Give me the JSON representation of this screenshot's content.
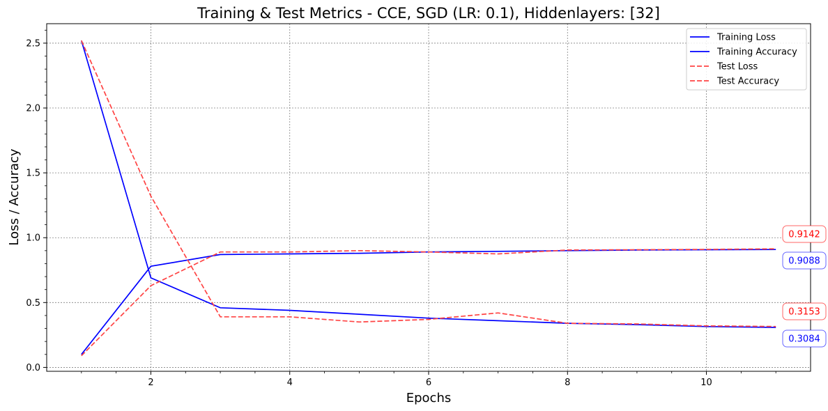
{
  "chart_data": {
    "type": "line",
    "title": "Training & Test Metrics - CCE, SGD (LR: 0.1), Hiddenlayers: [32]",
    "xlabel": "Epochs",
    "ylabel": "Loss / Accuracy",
    "xlim": [
      0.5,
      11.5
    ],
    "ylim": [
      -0.03,
      2.65
    ],
    "xticks": [
      2,
      4,
      6,
      8,
      10
    ],
    "xtick_labels": [
      "2",
      "4",
      "6",
      "8",
      "10"
    ],
    "yticks": [
      0.0,
      0.5,
      1.0,
      1.5,
      2.0,
      2.5
    ],
    "ytick_labels": [
      "0.0",
      "0.5",
      "1.0",
      "1.5",
      "2.0",
      "2.5"
    ],
    "grid": true,
    "legend_position": "top-right",
    "x": [
      1,
      2,
      3,
      4,
      5,
      6,
      7,
      8,
      9,
      10,
      11
    ],
    "series": [
      {
        "name": "Training Loss",
        "color": "#0000ff",
        "dash": "solid",
        "values": [
          2.52,
          0.69,
          0.46,
          0.44,
          0.41,
          0.38,
          0.36,
          0.34,
          0.33,
          0.315,
          0.3084
        ]
      },
      {
        "name": "Training Accuracy",
        "color": "#0000ff",
        "dash": "solid",
        "values": [
          0.1,
          0.78,
          0.87,
          0.875,
          0.88,
          0.89,
          0.895,
          0.9,
          0.905,
          0.907,
          0.9088
        ]
      },
      {
        "name": "Test Loss",
        "color": "#ff4444",
        "dash": "dashed",
        "values": [
          2.52,
          1.32,
          0.39,
          0.39,
          0.35,
          0.37,
          0.42,
          0.34,
          0.335,
          0.32,
          0.3153
        ]
      },
      {
        "name": "Test Accuracy",
        "color": "#ff4444",
        "dash": "dashed",
        "values": [
          0.09,
          0.63,
          0.89,
          0.89,
          0.9,
          0.89,
          0.875,
          0.905,
          0.907,
          0.91,
          0.9142
        ]
      }
    ],
    "annotations": [
      {
        "text": "0.9142",
        "value": 0.9142,
        "color": "#ff0000"
      },
      {
        "text": "0.9088",
        "value": 0.9088,
        "color": "#0000ff"
      },
      {
        "text": "0.3153",
        "value": 0.3153,
        "color": "#ff0000"
      },
      {
        "text": "0.3084",
        "value": 0.3084,
        "color": "#0000ff"
      }
    ]
  }
}
